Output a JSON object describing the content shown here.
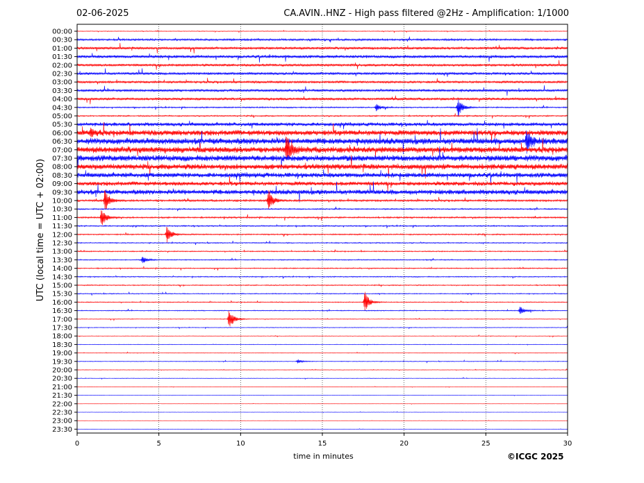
{
  "header": {
    "date": "02-06-2025",
    "title": "CA.AVIN..HNZ - High pass filtered @2Hz - Amplification: 1/1000"
  },
  "credit": "©ICGC 2025",
  "chart_data": {
    "type": "line",
    "xlabel": "time in minutes",
    "ylabel": "UTC (local time = UTC + 02:00)",
    "xlim": [
      0,
      30
    ],
    "x_ticks": [
      0,
      5,
      10,
      15,
      20,
      25,
      30
    ],
    "grid": "vertical dotted at 5-minute marks",
    "row_labels": [
      "00:00",
      "00:30",
      "01:00",
      "01:30",
      "02:00",
      "02:30",
      "03:00",
      "03:30",
      "04:00",
      "04:30",
      "05:00",
      "05:30",
      "06:00",
      "06:30",
      "07:00",
      "07:30",
      "08:00",
      "08:30",
      "09:00",
      "09:30",
      "10:00",
      "10:30",
      "11:00",
      "11:30",
      "12:00",
      "12:30",
      "13:00",
      "13:30",
      "14:00",
      "14:30",
      "15:00",
      "15:30",
      "16:00",
      "16:30",
      "17:00",
      "17:30",
      "18:00",
      "18:30",
      "19:00",
      "19:30",
      "20:00",
      "20:30",
      "21:00",
      "21:30",
      "22:00",
      "22:30",
      "23:00",
      "23:30"
    ],
    "series_colors": {
      "even_rows": "#ff0000",
      "odd_rows": "#0000ff"
    },
    "noise_level": [
      0.05,
      0.15,
      0.2,
      0.25,
      0.2,
      0.2,
      0.18,
      0.2,
      0.2,
      0.1,
      0.1,
      0.3,
      0.45,
      0.5,
      0.5,
      0.5,
      0.45,
      0.4,
      0.35,
      0.4,
      0.15,
      0.1,
      0.12,
      0.1,
      0.1,
      0.08,
      0.08,
      0.08,
      0.08,
      0.08,
      0.08,
      0.07,
      0.07,
      0.07,
      0.05,
      0.05,
      0.04,
      0.04,
      0.04,
      0.05,
      0.04,
      0.04,
      0.02,
      0.02,
      0.02,
      0.02,
      0.02,
      0.02
    ],
    "events": [
      {
        "row": "04:30",
        "minute": 23.3,
        "amplitude": 1.4
      },
      {
        "row": "04:30",
        "minute": 18.3,
        "amplitude": 0.5
      },
      {
        "row": "06:00",
        "minute": 0.8,
        "amplitude": 0.6
      },
      {
        "row": "06:30",
        "minute": 27.5,
        "amplitude": 1.6
      },
      {
        "row": "07:00",
        "minute": 12.8,
        "amplitude": 1.8
      },
      {
        "row": "10:00",
        "minute": 1.7,
        "amplitude": 1.7
      },
      {
        "row": "10:00",
        "minute": 11.7,
        "amplitude": 1.6
      },
      {
        "row": "11:00",
        "minute": 1.5,
        "amplitude": 1.5
      },
      {
        "row": "12:00",
        "minute": 5.5,
        "amplitude": 1.3
      },
      {
        "row": "13:30",
        "minute": 4.0,
        "amplitude": 0.5
      },
      {
        "row": "16:00",
        "minute": 17.6,
        "amplitude": 1.6
      },
      {
        "row": "16:30",
        "minute": 27.1,
        "amplitude": 0.6
      },
      {
        "row": "17:00",
        "minute": 9.3,
        "amplitude": 1.6
      },
      {
        "row": "19:30",
        "minute": 13.5,
        "amplitude": 0.3
      }
    ]
  }
}
